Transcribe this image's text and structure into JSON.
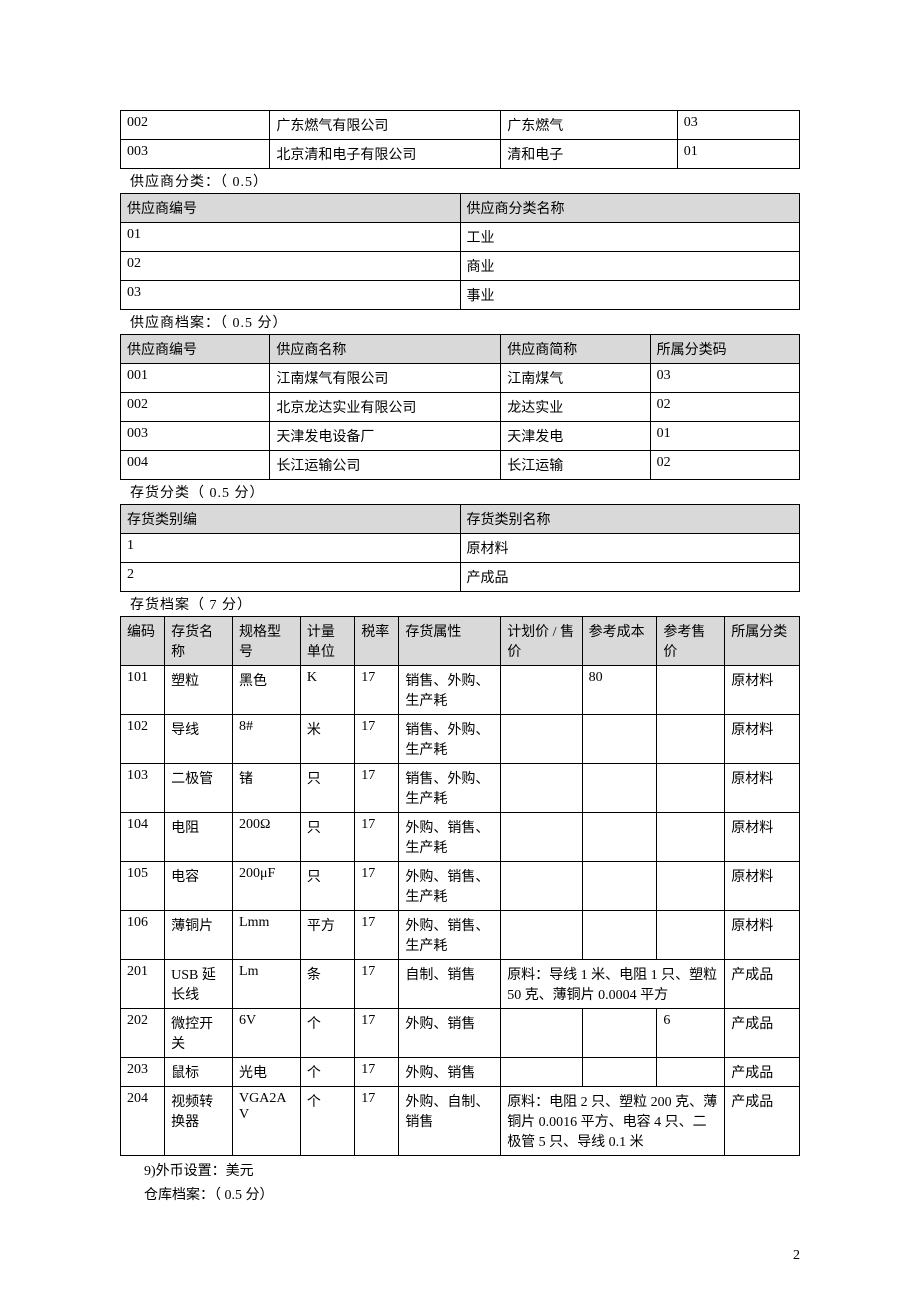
{
  "table1": {
    "rows": [
      [
        "002",
        "广东燃气有限公司",
        "广东燃气",
        "03"
      ],
      [
        "003",
        "北京清和电子有限公司",
        "清和电子",
        "01"
      ]
    ]
  },
  "supplier_class": {
    "label": "供应商分类：（ 0.5）",
    "headers": [
      "供应商编号",
      "供应商分类名称"
    ],
    "rows": [
      [
        "01",
        "工业"
      ],
      [
        "02",
        "商业"
      ],
      [
        "03",
        "事业"
      ]
    ]
  },
  "supplier_file": {
    "label": "供应商档案：（ 0.5 分）",
    "headers": [
      "供应商编号",
      "供应商名称",
      "供应商简称",
      "所属分类码"
    ],
    "rows": [
      [
        "001",
        "江南煤气有限公司",
        "江南煤气",
        "03"
      ],
      [
        "002",
        "北京龙达实业有限公司",
        "龙达实业",
        "02"
      ],
      [
        "003",
        "天津发电设备厂",
        "天津发电",
        "01"
      ],
      [
        "004",
        "长江运输公司",
        "长江运输",
        "02"
      ]
    ]
  },
  "inventory_class": {
    "label": "存货分类（ 0.5 分）",
    "headers": [
      "存货类别编",
      "存货类别名称"
    ],
    "rows": [
      [
        "1",
        "原材料"
      ],
      [
        "2",
        "产成品"
      ]
    ]
  },
  "inventory_file": {
    "label": "存货档案（ 7 分）",
    "headers": [
      "编码",
      "存货名称",
      "规格型号",
      "计量单位",
      "税率",
      "存货属性",
      "计划价 / 售价",
      "参考成本",
      "参考售价",
      "所属分类"
    ],
    "rows": [
      {
        "cells": [
          "101",
          "塑粒",
          "黑色",
          "K",
          "17",
          "销售、外购、生产耗",
          "",
          "80",
          "",
          "原材料"
        ]
      },
      {
        "cells": [
          "102",
          "导线",
          "8#",
          "米",
          "17",
          "销售、外购、生产耗",
          "",
          "",
          "",
          "原材料"
        ]
      },
      {
        "cells": [
          "103",
          "二极管",
          "锗",
          "只",
          "17",
          "销售、外购、生产耗",
          "",
          "",
          "",
          "原材料"
        ]
      },
      {
        "cells": [
          "104",
          "电阻",
          "200Ω",
          "只",
          "17",
          "外购、销售、生产耗",
          "",
          "",
          "",
          "原材料"
        ]
      },
      {
        "cells": [
          "105",
          "电容",
          "200μF",
          "只",
          "17",
          "外购、销售、生产耗",
          "",
          "",
          "",
          "原材料"
        ]
      },
      {
        "cells": [
          "106",
          "薄铜片",
          "Lmm",
          "平方",
          "17",
          "外购、销售、生产耗",
          "",
          "",
          "",
          "原材料"
        ]
      },
      {
        "cells": [
          "201",
          "USB 延长线",
          "Lm",
          "条",
          "17",
          "自制、销售"
        ],
        "merged": "原料：导线 1 米、电阻 1 只、塑粒 50 克、薄铜片 0.0004 平方",
        "last": "产成品"
      },
      {
        "cells": [
          "202",
          "微控开关",
          "6V",
          "个",
          "17",
          "外购、销售",
          "",
          "",
          "6",
          "产成品"
        ]
      },
      {
        "cells": [
          "203",
          "鼠标",
          "光电",
          "个",
          "17",
          "外购、销售",
          "",
          "",
          "",
          "产成品"
        ]
      },
      {
        "cells": [
          "204",
          "视频转换器",
          "VGA2AV",
          "个",
          "17",
          "外购、自制、销售"
        ],
        "merged": "原料：电阻 2 只、塑粒 200 克、薄铜片 0.0016 平方、电容 4 只、二极管 5 只、导线 0.1 米",
        "last": "产成品"
      }
    ]
  },
  "footer": {
    "line1": "9)外币设置：美元",
    "line2": "仓库档案：（ 0.5 分）"
  },
  "page_number": "2",
  "col_widths": {
    "t1": [
      "22%",
      "34%",
      "26%",
      "18%"
    ],
    "sc": [
      "50%",
      "50%"
    ],
    "sf": [
      "22%",
      "34%",
      "22%",
      "22%"
    ],
    "ic": [
      "50%",
      "50%"
    ],
    "inv": [
      "6.5%",
      "10%",
      "10%",
      "8%",
      "6.5%",
      "15%",
      "12%",
      "11%",
      "10%",
      "11%"
    ]
  }
}
